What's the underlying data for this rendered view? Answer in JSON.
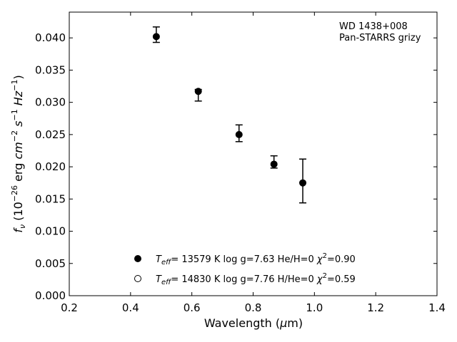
{
  "chart_data": {
    "type": "scatter",
    "annotation": [
      "WD 1438+008",
      "Pan-STARRS grizy"
    ],
    "xlabel": {
      "main": "Wavelength (",
      "sym": "μ",
      "tail": "m)"
    },
    "ylabel": {
      "sym": "f",
      "sub": "ν",
      "pre": " (10",
      "exp": "−26",
      "mid": " erg ",
      "cm": "cm",
      "cmexp": "−2",
      "s": " s",
      "sexp": "−1",
      "hz": " Hz",
      "hzexp": "−1",
      "close": ")"
    },
    "xlim": [
      0.2,
      1.4
    ],
    "ylim": [
      0.0,
      0.044
    ],
    "xticks": [
      0.2,
      0.4,
      0.6,
      0.8,
      1.0,
      1.2,
      1.4
    ],
    "xtick_labels": [
      "0.2",
      "0.4",
      "0.6",
      "0.8",
      "1.0",
      "1.2",
      "1.4"
    ],
    "yticks": [
      0.0,
      0.005,
      0.01,
      0.015,
      0.02,
      0.025,
      0.03,
      0.035,
      0.04
    ],
    "ytick_labels": [
      "0.000",
      "0.005",
      "0.010",
      "0.015",
      "0.020",
      "0.025",
      "0.030",
      "0.035",
      "0.040"
    ],
    "grid": false,
    "legend_placement": "lower-center",
    "points": [
      {
        "x": 0.484,
        "y": 0.0402,
        "ylo": 0.0393,
        "yhi": 0.0417
      },
      {
        "x": 0.621,
        "y": 0.0317,
        "ylo": 0.0302,
        "yhi": 0.032
      },
      {
        "x": 0.754,
        "y": 0.025,
        "ylo": 0.0239,
        "yhi": 0.0265
      },
      {
        "x": 0.868,
        "y": 0.0204,
        "ylo": 0.0198,
        "yhi": 0.0217
      },
      {
        "x": 0.962,
        "y": 0.0175,
        "ylo": 0.0144,
        "yhi": 0.0212
      }
    ],
    "legend": [
      {
        "marker": "filled",
        "teff": "T",
        "teff_sub": "eff",
        "text": "= 13579 K  log g=7.63  He/H=0  ",
        "chi": "χ",
        "chi_exp": "2",
        "chi_val": "=0.90"
      },
      {
        "marker": "open",
        "teff": "T",
        "teff_sub": "eff",
        "text": "= 14830 K  log g=7.76  H/He=0  ",
        "chi": "χ",
        "chi_exp": "2",
        "chi_val": "=0.59"
      }
    ]
  }
}
